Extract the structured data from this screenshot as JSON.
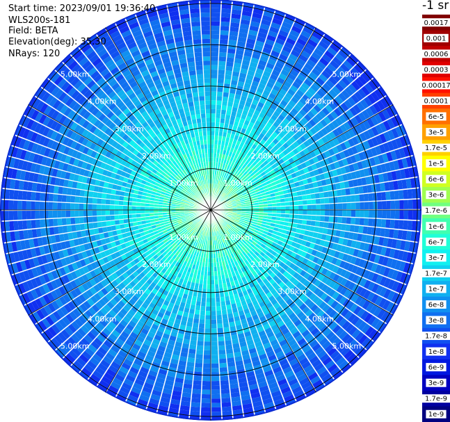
{
  "header": {
    "start_time": "Start time: 2023/09/01 19:36:40",
    "instrument": "WLS200s-181",
    "field": "Field: BETA",
    "elevation": "Elevation(deg): 35.30",
    "nrays": "NRays: 120"
  },
  "colorbar": {
    "units_label": "-1 sr",
    "entries": [
      {
        "label": "0.0017",
        "color": "#800000"
      },
      {
        "label": "0.001",
        "color": "#a00000"
      },
      {
        "label": "0.0006",
        "color": "#c00000"
      },
      {
        "label": "0.0003",
        "color": "#e00000"
      },
      {
        "label": "0.00017",
        "color": "#ff1000"
      },
      {
        "label": "0.0001",
        "color": "#ff4000"
      },
      {
        "label": "6e-5",
        "color": "#ff7000"
      },
      {
        "label": "3e-5",
        "color": "#ffa000"
      },
      {
        "label": "1.7e-5",
        "color": "#ffd000"
      },
      {
        "label": "1e-5",
        "color": "#ffff00"
      },
      {
        "label": "6e-6",
        "color": "#d0ff20"
      },
      {
        "label": "3e-6",
        "color": "#a0ff50"
      },
      {
        "label": "1.7e-6",
        "color": "#70ff80"
      },
      {
        "label": "1e-6",
        "color": "#40ffb0"
      },
      {
        "label": "6e-7",
        "color": "#20ffd8"
      },
      {
        "label": "3e-7",
        "color": "#10f0f0"
      },
      {
        "label": "1.7e-7",
        "color": "#10d0f0"
      },
      {
        "label": "1e-7",
        "color": "#10b0f0"
      },
      {
        "label": "6e-8",
        "color": "#1090f0"
      },
      {
        "label": "3e-8",
        "color": "#1070f0"
      },
      {
        "label": "1.7e-8",
        "color": "#1050f0"
      },
      {
        "label": "1e-8",
        "color": "#1030f0"
      },
      {
        "label": "6e-9",
        "color": "#0018e0"
      },
      {
        "label": "3e-9",
        "color": "#0000c0"
      },
      {
        "label": "1.7e-9",
        "color": "#0000a0"
      },
      {
        "label": "1e-9",
        "color": "#000080"
      }
    ]
  },
  "range_rings": [
    {
      "km": 1,
      "label": "1.00km"
    },
    {
      "km": 2,
      "label": "2.00km"
    },
    {
      "km": 3,
      "label": "3.00km"
    },
    {
      "km": 4,
      "label": "4.00km"
    },
    {
      "km": 5,
      "label": "5.00km"
    }
  ],
  "ppi": {
    "max_range_km": 5.1,
    "spoke_interval_deg": 30,
    "nrays": 120
  }
}
